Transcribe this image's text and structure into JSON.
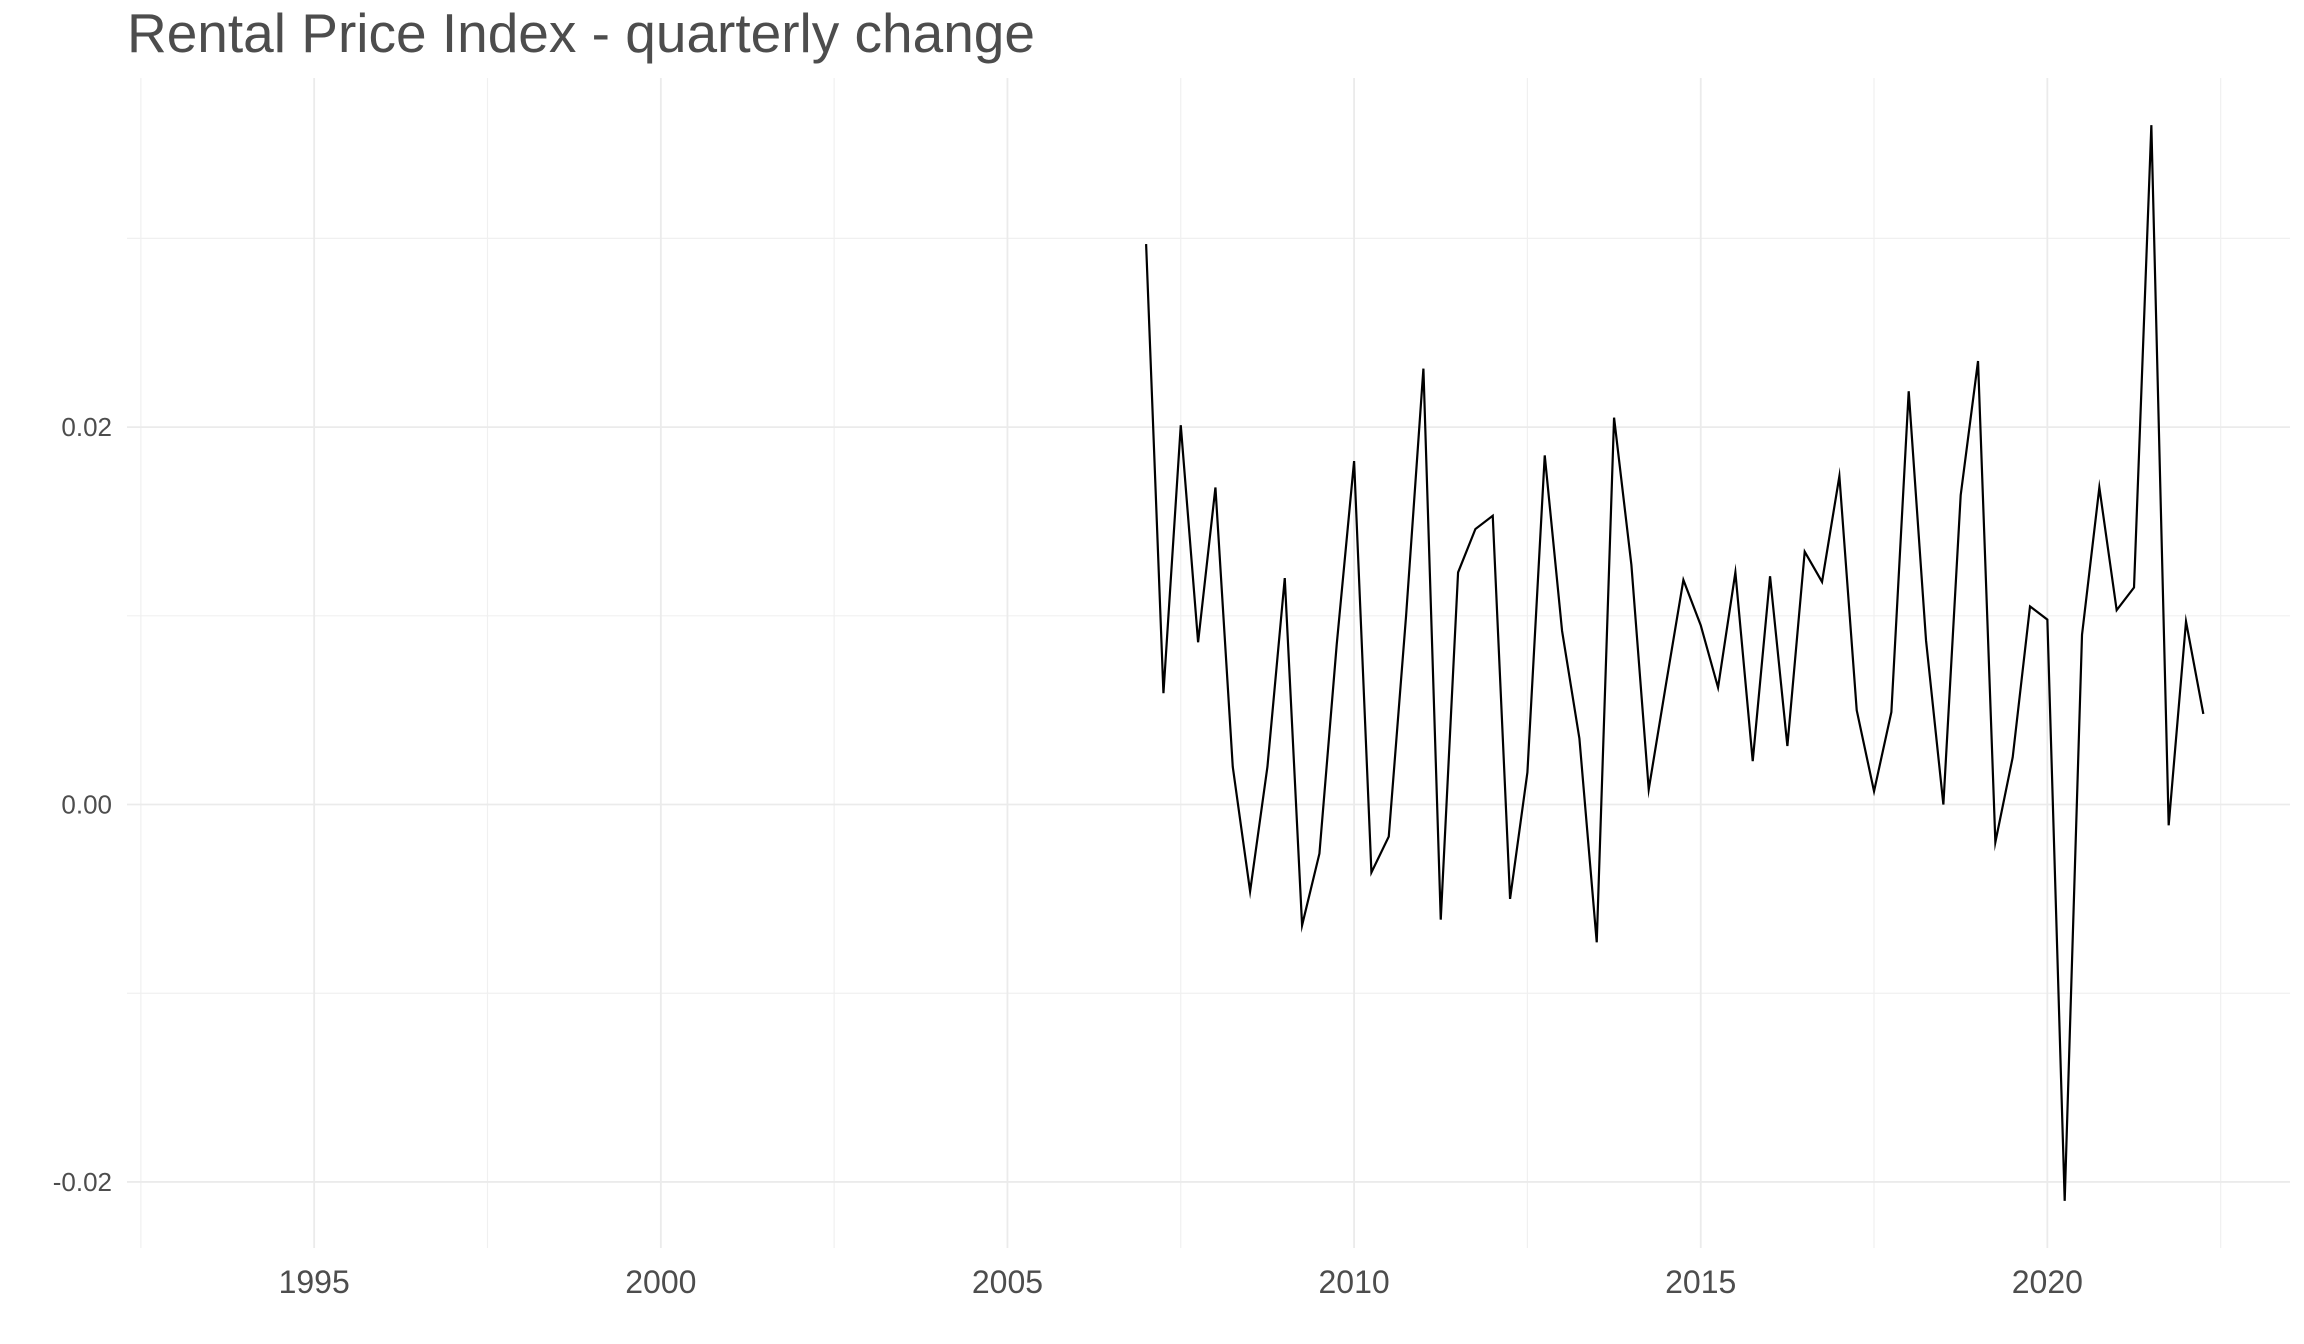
{
  "chart_data": {
    "type": "line",
    "title": "Rental Price Index - quarterly change",
    "xlabel": "",
    "ylabel": "",
    "x_ticks": [
      "1995",
      "2000",
      "2005",
      "2010",
      "2015",
      "2020"
    ],
    "y_ticks": [
      "-0.02",
      "0.00",
      "0.02"
    ],
    "xlim": [
      1992.3,
      2023.5
    ],
    "ylim": [
      -0.0235,
      0.0385
    ],
    "grid": true,
    "legend": "none",
    "line_color": "#000000",
    "series": [
      {
        "x": [
          2007.0,
          2007.25,
          2007.5,
          2007.75,
          2008.0,
          2008.25,
          2008.5,
          2008.75,
          2009.0,
          2009.25,
          2009.5,
          2009.75,
          2010.0,
          2010.25,
          2010.5,
          2010.75,
          2011.0,
          2011.25,
          2011.5,
          2011.75,
          2012.0,
          2012.25,
          2012.5,
          2012.75,
          2013.0,
          2013.25,
          2013.5,
          2013.75,
          2014.0,
          2014.25,
          2014.5,
          2014.75,
          2015.0,
          2015.25,
          2015.5,
          2015.75,
          2016.0,
          2016.25,
          2016.5,
          2016.75,
          2017.0,
          2017.25,
          2017.5,
          2017.75,
          2018.0,
          2018.25,
          2018.5,
          2018.75,
          2019.0,
          2019.25,
          2019.5,
          2019.75,
          2020.0,
          2020.25,
          2020.5,
          2020.75,
          2021.0,
          2021.25,
          2021.5,
          2021.75,
          2022.0,
          2022.25
        ],
        "values": [
          0.0297,
          0.0059,
          0.0201,
          0.0086,
          0.0168,
          0.002,
          -0.0046,
          0.002,
          0.012,
          -0.0064,
          -0.0026,
          0.0085,
          0.0182,
          -0.0036,
          -0.0017,
          0.01,
          0.0231,
          -0.0061,
          0.0123,
          0.0146,
          0.0153,
          -0.005,
          0.0017,
          0.0185,
          0.0092,
          0.0035,
          -0.0073,
          0.0205,
          0.0127,
          0.0008,
          0.0064,
          0.0119,
          0.0095,
          0.0062,
          0.0123,
          0.0023,
          0.0121,
          0.0031,
          0.0134,
          0.0118,
          0.0174,
          0.005,
          0.0007,
          0.0049,
          0.0219,
          0.0087,
          0.0,
          0.0164,
          0.0235,
          -0.002,
          0.0025,
          0.0105,
          0.0098,
          -0.021,
          0.009,
          0.0168,
          0.0103,
          0.0115,
          0.036,
          -0.0011,
          0.0097,
          0.0048
        ]
      }
    ]
  }
}
